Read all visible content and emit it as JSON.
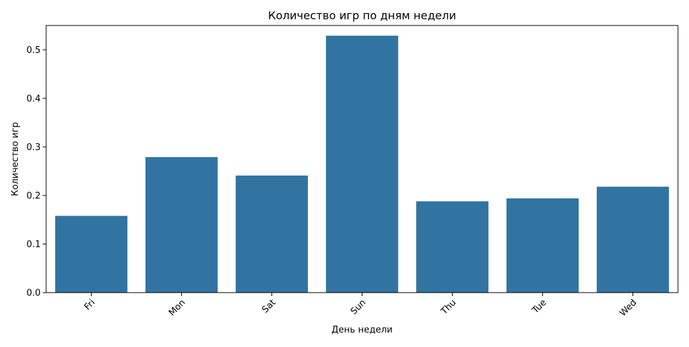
{
  "chart_data": {
    "type": "bar",
    "title": "Количество игр по дням недели",
    "xlabel": "День недели",
    "ylabel": "Количество игр",
    "categories": [
      "Fri",
      "Mon",
      "Sat",
      "Sun",
      "Thu",
      "Tue",
      "Wed"
    ],
    "values": [
      0.158,
      0.279,
      0.241,
      0.529,
      0.188,
      0.194,
      0.218
    ],
    "ylim": [
      0,
      0.55
    ],
    "yticks": [
      0.0,
      0.1,
      0.2,
      0.3,
      0.4,
      0.5
    ],
    "ytick_labels": [
      "0.0",
      "0.1",
      "0.2",
      "0.3",
      "0.4",
      "0.5"
    ],
    "grid": false,
    "bar_color": "#3274a1",
    "x_tick_rotation": "45 degrees"
  }
}
